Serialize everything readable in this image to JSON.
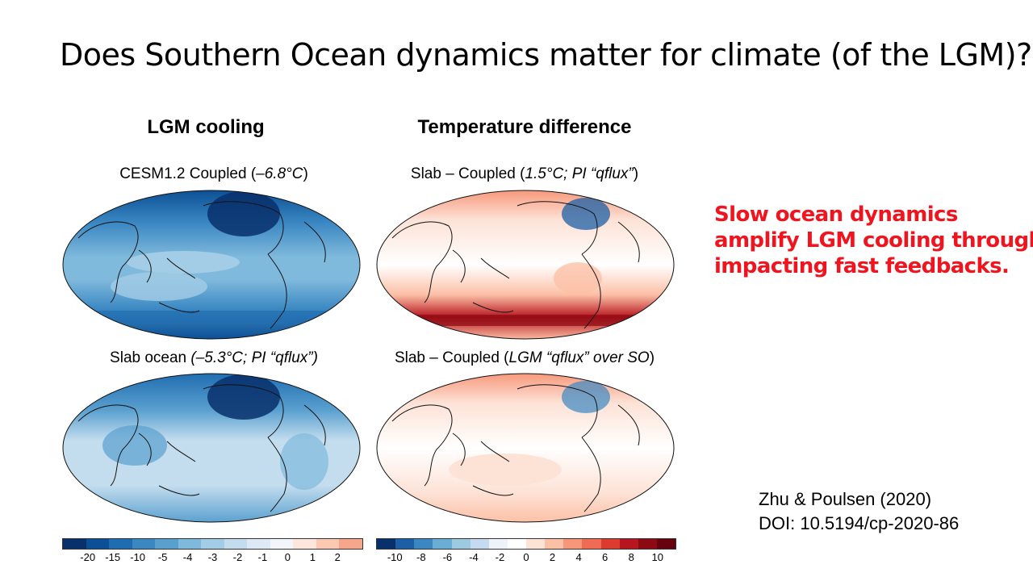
{
  "slide_title": "Does Southern Ocean dynamics matter for climate (of the LGM)?",
  "columns": {
    "left_heading": "LGM cooling",
    "right_heading": "Temperature difference"
  },
  "maps": {
    "top_left": {
      "label_plain": "CESM1.2 Coupled (",
      "label_italic": "–6.8°C",
      "label_end": ")"
    },
    "bottom_left": {
      "label_plain": "Slab ocean ",
      "label_italic": "(–5.3°C; PI “qflux”)",
      "label_end": ""
    },
    "top_right": {
      "label_plain": "Slab – Coupled (",
      "label_italic": "1.5°C; PI “qflux”",
      "label_end": ")"
    },
    "bottom_right": {
      "label_plain": "Slab – Coupled (",
      "label_italic": "LGM “qflux” over SO",
      "label_end": ")"
    }
  },
  "callout_lines": [
    "Slow ocean dynamics",
    "amplify LGM cooling through",
    "impacting fast feedbacks."
  ],
  "citation": {
    "authors": "Zhu & Poulsen (2020)",
    "doi": "DOI: 10.5194/cp-2020-86"
  },
  "colorbar_left": {
    "ticks": [
      "-20",
      "-15",
      "-10",
      "-5",
      "-4",
      "-3",
      "-2",
      "-1",
      "0",
      "1",
      "2"
    ],
    "colors": [
      "#08306b",
      "#0b4f94",
      "#1f6db1",
      "#3a87c2",
      "#5aa0cf",
      "#7fb9dc",
      "#a3cde6",
      "#c3ddee",
      "#dde9f5",
      "#f2f6fb",
      "#fde7dc",
      "#fbc8b2",
      "#f6a68b"
    ]
  },
  "colorbar_right": {
    "ticks": [
      "-10",
      "-8",
      "-6",
      "-4",
      "-2",
      "0",
      "2",
      "4",
      "6",
      "8",
      "10"
    ],
    "colors": [
      "#08306b",
      "#1c5fa6",
      "#3a87c2",
      "#6aaed6",
      "#9ecae1",
      "#c6dbef",
      "#eef3fa",
      "#ffffff",
      "#fde2d6",
      "#fbc0a6",
      "#f7977a",
      "#ef6b54",
      "#dc3b30",
      "#b7151f",
      "#8c0a12",
      "#67000d"
    ]
  }
}
